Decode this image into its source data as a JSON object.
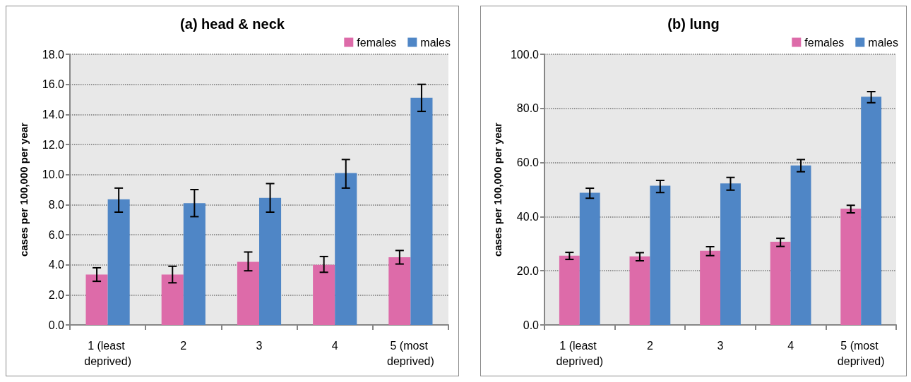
{
  "chart_data": [
    {
      "type": "bar",
      "title": "(a) head & neck",
      "ylabel": "cases per 100,000 per year",
      "categories": [
        "1 (least deprived)",
        "2",
        "3",
        "4",
        "5 (most deprived)"
      ],
      "series": [
        {
          "name": "females",
          "color": "#dd6ba9",
          "values": [
            3.35,
            3.35,
            4.2,
            4.0,
            4.5
          ],
          "errors": [
            [
              2.9,
              3.8
            ],
            [
              2.8,
              3.9
            ],
            [
              3.6,
              4.85
            ],
            [
              3.5,
              4.55
            ],
            [
              4.05,
              4.95
            ]
          ]
        },
        {
          "name": "males",
          "color": "#4f86c6",
          "values": [
            8.35,
            8.1,
            8.45,
            10.1,
            15.1
          ],
          "errors": [
            [
              7.5,
              9.1
            ],
            [
              7.2,
              9.0
            ],
            [
              7.5,
              9.4
            ],
            [
              9.1,
              11.0
            ],
            [
              14.2,
              16.0
            ]
          ]
        }
      ],
      "ylim": [
        0,
        18
      ],
      "yticks": [
        {
          "value": 0,
          "label": "0.0"
        },
        {
          "value": 2,
          "label": "2.0"
        },
        {
          "value": 4,
          "label": "4.0"
        },
        {
          "value": 6,
          "label": "6.0"
        },
        {
          "value": 8,
          "label": "8.0"
        },
        {
          "value": 10,
          "label": "10.0"
        },
        {
          "value": 12,
          "label": "12.0"
        },
        {
          "value": 14,
          "label": "14.0"
        },
        {
          "value": 16,
          "label": "16.0"
        },
        {
          "value": 18,
          "label": "18.0"
        }
      ],
      "grid": "y",
      "legend": "top right"
    },
    {
      "type": "bar",
      "title": "(b) lung",
      "ylabel": "cases per 100,000 per year",
      "categories": [
        "1 (least deprived)",
        "2",
        "3",
        "4",
        "5 (most deprived)"
      ],
      "series": [
        {
          "name": "females",
          "color": "#dd6ba9",
          "values": [
            25.6,
            25.3,
            27.4,
            30.7,
            43.0
          ],
          "errors": [
            [
              24.2,
              26.8
            ],
            [
              23.7,
              26.7
            ],
            [
              25.6,
              28.9
            ],
            [
              29.0,
              32.0
            ],
            [
              41.4,
              44.2
            ]
          ]
        },
        {
          "name": "males",
          "color": "#4f86c6",
          "values": [
            48.8,
            51.4,
            52.3,
            58.9,
            84.3
          ],
          "errors": [
            [
              46.8,
              50.5
            ],
            [
              48.9,
              53.4
            ],
            [
              49.8,
              54.5
            ],
            [
              56.6,
              61.1
            ],
            [
              82.1,
              86.2
            ]
          ]
        }
      ],
      "ylim": [
        0,
        100
      ],
      "yticks": [
        {
          "value": 0,
          "label": "0.0"
        },
        {
          "value": 20,
          "label": "20.0"
        },
        {
          "value": 40,
          "label": "40.0"
        },
        {
          "value": 60,
          "label": "60.0"
        },
        {
          "value": 80,
          "label": "80.0"
        },
        {
          "value": 100,
          "label": "100.0"
        }
      ],
      "grid": "y",
      "legend": "top right"
    }
  ]
}
